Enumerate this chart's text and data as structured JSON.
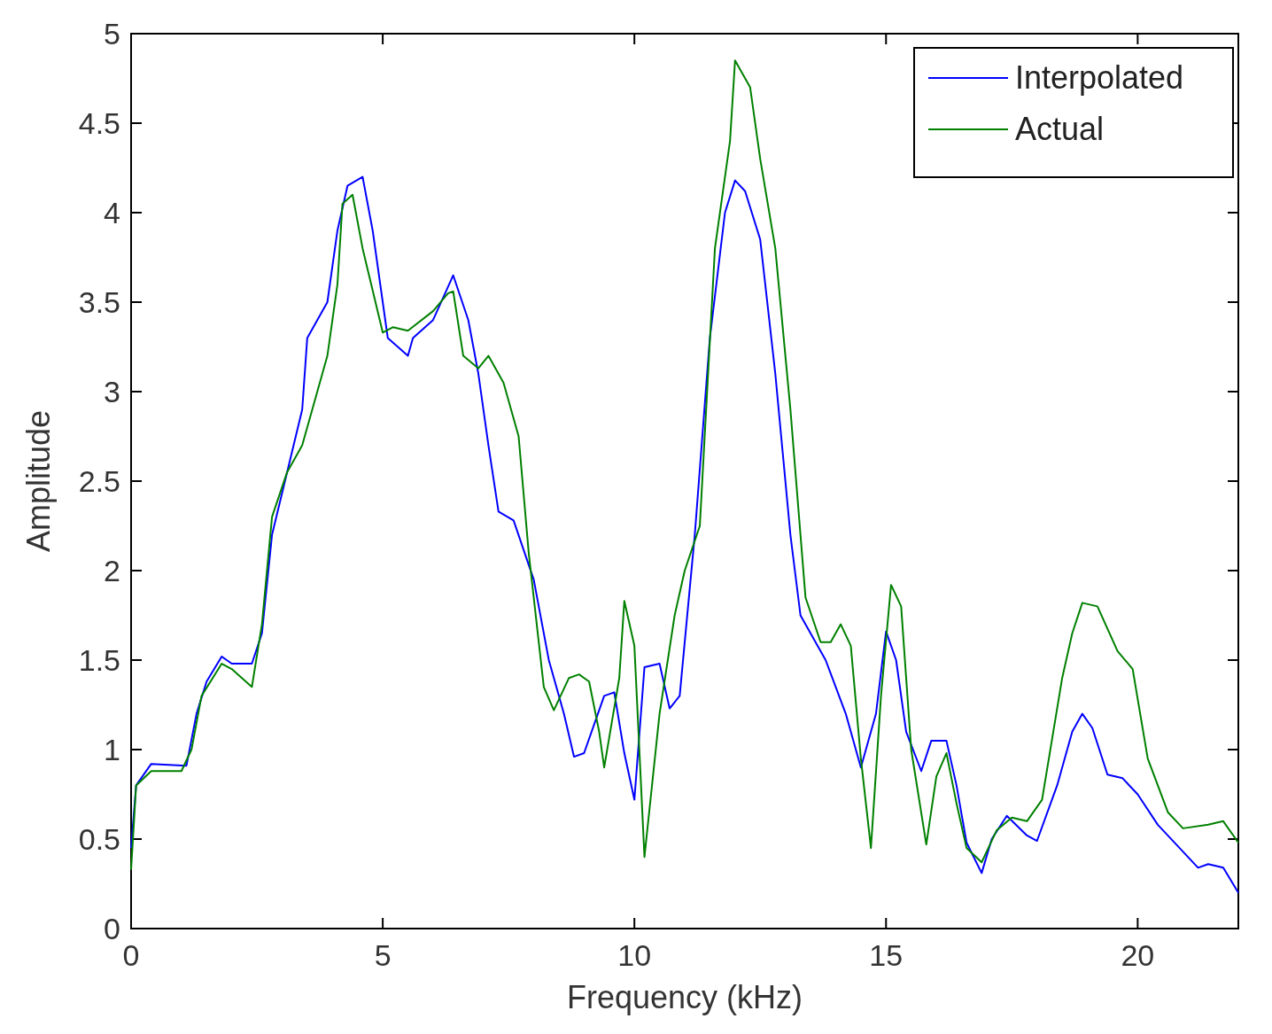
{
  "chart_data": {
    "type": "line",
    "xlabel": "Frequency (kHz)",
    "ylabel": "Amplitude",
    "xlim": [
      0,
      22
    ],
    "ylim": [
      0,
      5
    ],
    "xticks": [
      0,
      5,
      10,
      15,
      20
    ],
    "yticks": [
      0,
      0.5,
      1,
      1.5,
      2,
      2.5,
      3,
      3.5,
      4,
      4.5,
      5
    ],
    "grid": false,
    "legend": "top right",
    "marker": "none",
    "line_style": "solid",
    "series": [
      {
        "name": "Interpolated",
        "color": "#0000ff",
        "x": [
          0,
          0.1,
          0.4,
          1.1,
          1.3,
          1.5,
          1.8,
          2.0,
          2.4,
          2.6,
          2.8,
          3.1,
          3.4,
          3.5,
          3.9,
          4.1,
          4.3,
          4.6,
          4.8,
          5.0,
          5.1,
          5.5,
          5.6,
          6.0,
          6.4,
          6.7,
          6.9,
          7.1,
          7.3,
          7.6,
          8.0,
          8.3,
          8.6,
          8.8,
          9.0,
          9.4,
          9.6,
          9.8,
          10.0,
          10.2,
          10.5,
          10.7,
          10.9,
          11.2,
          11.5,
          11.8,
          12.0,
          12.2,
          12.5,
          12.8,
          13.1,
          13.3,
          13.8,
          14.2,
          14.5,
          14.8,
          15.0,
          15.2,
          15.4,
          15.7,
          15.9,
          16.2,
          16.4,
          16.6,
          16.9,
          17.1,
          17.4,
          17.8,
          18.0,
          18.4,
          18.7,
          18.9,
          19.1,
          19.4,
          19.7,
          20.0,
          20.4,
          20.8,
          21.2,
          21.4,
          21.7,
          22
        ],
        "values": [
          0.45,
          0.8,
          0.92,
          0.91,
          1.2,
          1.38,
          1.52,
          1.48,
          1.48,
          1.65,
          2.2,
          2.55,
          2.9,
          3.3,
          3.5,
          3.9,
          4.15,
          4.2,
          3.9,
          3.5,
          3.3,
          3.2,
          3.3,
          3.4,
          3.65,
          3.4,
          3.1,
          2.7,
          2.33,
          2.28,
          1.95,
          1.5,
          1.2,
          0.96,
          0.98,
          1.3,
          1.32,
          0.98,
          0.72,
          1.46,
          1.48,
          1.23,
          1.3,
          2.2,
          3.3,
          4.0,
          4.18,
          4.12,
          3.85,
          3.1,
          2.2,
          1.75,
          1.5,
          1.2,
          0.9,
          1.2,
          1.66,
          1.5,
          1.1,
          0.88,
          1.05,
          1.05,
          0.8,
          0.48,
          0.31,
          0.5,
          0.63,
          0.52,
          0.49,
          0.8,
          1.1,
          1.2,
          1.12,
          0.86,
          0.84,
          0.75,
          0.58,
          0.46,
          0.34,
          0.36,
          0.34,
          0.2
        ]
      },
      {
        "name": "Actual",
        "color": "#008000",
        "x": [
          0,
          0.1,
          0.4,
          1.0,
          1.2,
          1.4,
          1.8,
          2.0,
          2.4,
          2.6,
          2.8,
          3.1,
          3.4,
          3.7,
          3.9,
          4.1,
          4.2,
          4.4,
          4.6,
          5.0,
          5.2,
          5.5,
          6.0,
          6.3,
          6.4,
          6.6,
          6.9,
          7.1,
          7.4,
          7.7,
          7.9,
          8.2,
          8.4,
          8.7,
          8.9,
          9.1,
          9.3,
          9.4,
          9.7,
          9.8,
          10.0,
          10.2,
          10.5,
          10.8,
          11.0,
          11.3,
          11.6,
          11.9,
          12.0,
          12.3,
          12.5,
          12.8,
          13.1,
          13.4,
          13.7,
          13.9,
          14.1,
          14.3,
          14.5,
          14.7,
          14.9,
          15.1,
          15.3,
          15.5,
          15.8,
          16.0,
          16.2,
          16.4,
          16.6,
          16.9,
          17.2,
          17.5,
          17.8,
          18.1,
          18.5,
          18.7,
          18.9,
          19.2,
          19.6,
          19.9,
          20.2,
          20.6,
          20.9,
          21.4,
          21.7,
          22
        ],
        "values": [
          0.33,
          0.8,
          0.88,
          0.88,
          1.0,
          1.3,
          1.48,
          1.45,
          1.35,
          1.7,
          2.3,
          2.55,
          2.7,
          3.0,
          3.2,
          3.6,
          4.05,
          4.1,
          3.8,
          3.33,
          3.36,
          3.34,
          3.45,
          3.55,
          3.56,
          3.2,
          3.13,
          3.2,
          3.05,
          2.75,
          2.1,
          1.35,
          1.22,
          1.4,
          1.42,
          1.38,
          1.1,
          0.9,
          1.4,
          1.83,
          1.58,
          0.4,
          1.2,
          1.75,
          2.0,
          2.25,
          3.8,
          4.4,
          4.85,
          4.7,
          4.3,
          3.8,
          2.9,
          1.85,
          1.6,
          1.6,
          1.7,
          1.58,
          0.95,
          0.45,
          1.3,
          1.92,
          1.8,
          1.0,
          0.47,
          0.85,
          0.98,
          0.7,
          0.45,
          0.37,
          0.55,
          0.62,
          0.6,
          0.72,
          1.4,
          1.65,
          1.82,
          1.8,
          1.55,
          1.45,
          0.95,
          0.65,
          0.56,
          0.58,
          0.6,
          0.48
        ]
      }
    ]
  }
}
